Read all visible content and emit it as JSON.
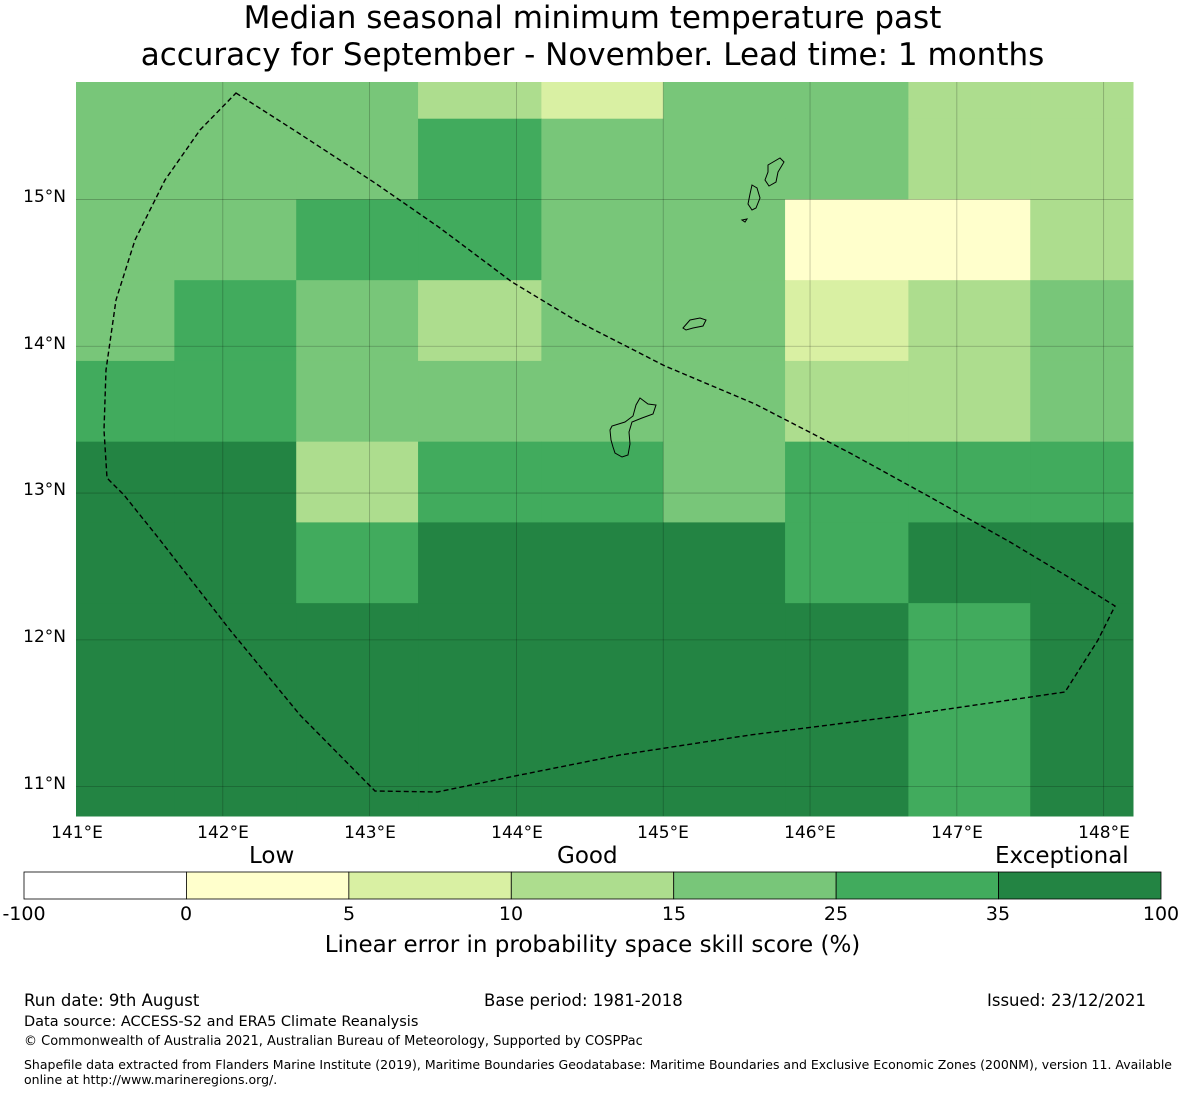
{
  "title": {
    "line1": "Median seasonal minimum temperature past",
    "line2": "accuracy for September - November. Lead time: 1 months"
  },
  "map": {
    "lat_ticks": [
      "15°N",
      "14°N",
      "13°N",
      "12°N",
      "11°N"
    ],
    "lon_ticks": [
      "141°E",
      "142°E",
      "143°E",
      "144°E",
      "145°E",
      "146°E",
      "147°E",
      "148°E"
    ],
    "lon_range": [
      141.0,
      148.2
    ],
    "lat_range": [
      10.8,
      15.8
    ],
    "grid_lines": true,
    "outline": "Guam/CNMI EEZ boundary (dashed)",
    "grid_rows_lat_top": [
      15.8,
      15.55,
      15.0,
      14.45,
      13.9,
      13.35,
      12.8,
      12.25,
      10.8
    ],
    "grid_cols_lon_left": [
      141.0,
      141.67,
      142.5,
      143.33,
      144.17,
      145.0,
      145.83,
      146.67,
      147.5,
      148.2
    ],
    "cell_classes": [
      [
        4,
        4,
        4,
        3,
        2,
        4,
        4,
        3,
        3
      ],
      [
        4,
        4,
        4,
        5,
        4,
        4,
        4,
        3,
        3
      ],
      [
        4,
        4,
        5,
        5,
        4,
        4,
        1,
        1,
        3
      ],
      [
        4,
        5,
        4,
        3,
        4,
        4,
        2,
        3,
        4
      ],
      [
        5,
        5,
        4,
        4,
        4,
        4,
        3,
        3,
        4
      ],
      [
        6,
        6,
        3,
        5,
        5,
        4,
        5,
        5,
        5
      ],
      [
        6,
        6,
        5,
        6,
        6,
        6,
        5,
        6,
        6
      ],
      [
        6,
        6,
        6,
        6,
        6,
        6,
        6,
        5,
        6
      ]
    ]
  },
  "legend": {
    "categories": [
      "Low",
      "Good",
      "Exceptional"
    ],
    "ticks": [
      "-100",
      "0",
      "5",
      "10",
      "15",
      "25",
      "35",
      "100"
    ],
    "colors": [
      "#ffffff",
      "#ffffcc",
      "#d9f0a3",
      "#addd8e",
      "#78c679",
      "#41ab5d",
      "#238443"
    ],
    "title": "Linear error in probability space skill score (%)"
  },
  "footer": {
    "run_date": "Run date: 9th August",
    "base_period": "Base period: 1981-2018",
    "issued": "Issued: 23/12/2021",
    "data_source": "Data source: ACCESS-S2 and ERA5 Climate Reanalysis",
    "copyright": "© Commonwealth of Australia 2021, Australian Bureau of Meteorology, Supported by COSPPac",
    "shapefile_note": "Shapefile data extracted from Flanders Marine Institute (2019), Maritime Boundaries Geodatabase: Maritime Boundaries and Exclusive Economic Zones (200NM), version 11. Available online at http://www.marineregions.org/."
  }
}
